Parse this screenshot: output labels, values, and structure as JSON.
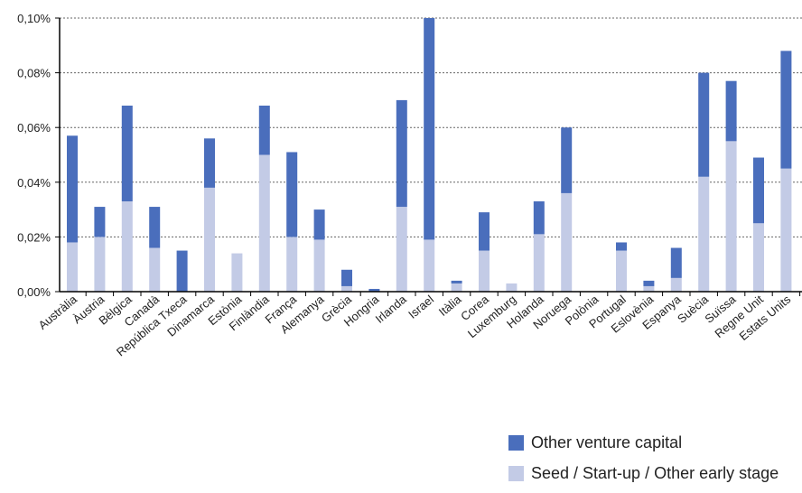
{
  "colors": {
    "other_vc": "#4a6ebc",
    "seed": "#c3cbe6",
    "grid": "#666666",
    "axis": "#000000"
  },
  "legend": {
    "items": [
      {
        "label": "Other venture capital",
        "color": "#4a6ebc"
      },
      {
        "label": "Seed / Start-up / Other early stage",
        "color": "#c3cbe6"
      }
    ]
  },
  "chart_data": {
    "type": "bar",
    "stacked": true,
    "categories": [
      "Austràlia",
      "Àustria",
      "Bèlgica",
      "Canadà",
      "República Txeca",
      "Dinamarca",
      "Estònia",
      "Finlàndia",
      "França",
      "Alemanya",
      "Grècia",
      "Hongria",
      "Irlanda",
      "Israel",
      "Itàlia",
      "Corea",
      "Luxemburg",
      "Holanda",
      "Noruega",
      "Polònia",
      "Portugal",
      "Eslovènia",
      "Espanya",
      "Suècia",
      "Suïssa",
      "Regne Unit",
      "Estats Units"
    ],
    "series": [
      {
        "name": "Seed / Start-up / Other early stage",
        "values": [
          0.018,
          0.02,
          0.033,
          0.016,
          0.0,
          0.038,
          0.014,
          0.05,
          0.02,
          0.019,
          0.002,
          0.0,
          0.031,
          0.019,
          0.003,
          0.015,
          0.003,
          0.021,
          0.036,
          0.0,
          0.015,
          0.002,
          0.005,
          0.042,
          0.055,
          0.025,
          0.045
        ]
      },
      {
        "name": "Other venture capital",
        "values": [
          0.039,
          0.011,
          0.035,
          0.015,
          0.015,
          0.018,
          0.0,
          0.018,
          0.031,
          0.011,
          0.006,
          0.001,
          0.039,
          0.081,
          0.001,
          0.014,
          0.0,
          0.012,
          0.024,
          0.0,
          0.003,
          0.002,
          0.011,
          0.038,
          0.022,
          0.024,
          0.043
        ]
      }
    ],
    "yticks": [
      "0,00%",
      "0,02%",
      "0,04%",
      "0,06%",
      "0,08%",
      "0,10%"
    ],
    "ylim": [
      0,
      0.1
    ],
    "grid": true,
    "legend_position": "bottom-right"
  }
}
